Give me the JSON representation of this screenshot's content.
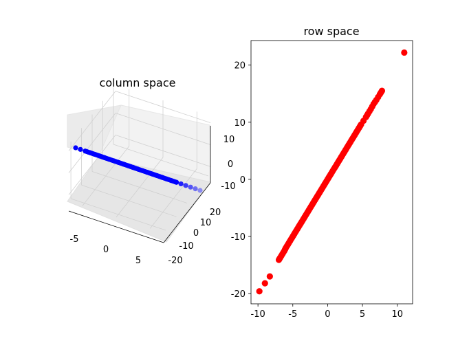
{
  "chart_data": [
    {
      "type": "scatter",
      "projection": "3d",
      "title": "column space",
      "xlabel": "",
      "ylabel": "",
      "zlabel": "",
      "xlim": [
        -7,
        7
      ],
      "ylim": [
        -22,
        22
      ],
      "zlim": [
        -13,
        13
      ],
      "x_ticks": [
        "-5",
        "0",
        "5"
      ],
      "y_ticks": [
        "-20",
        "-10",
        "0",
        "10",
        "20"
      ],
      "z_ticks": [
        "-10",
        "0",
        "10"
      ],
      "grid": true,
      "color": "#0000ff",
      "points": {
        "x": [
          -6.9,
          -6.0,
          -5.5,
          -5.0,
          -4.5,
          -4.0,
          -3.5,
          -3.0,
          -2.5,
          -2.0,
          -1.5,
          -1.0,
          -0.5,
          0.0,
          0.5,
          1.0,
          1.5,
          2.0,
          2.5,
          3.0,
          3.5,
          4.0,
          4.5,
          5.0,
          5.5,
          6.0,
          6.5
        ],
        "y": [
          -20.0,
          -17.5,
          -16.0,
          -14.5,
          -13.0,
          -11.5,
          -10.0,
          -8.5,
          -7.0,
          -5.5,
          -4.0,
          -2.5,
          -1.0,
          0.5,
          2.0,
          3.5,
          5.0,
          6.5,
          8.0,
          9.5,
          11.0,
          12.5,
          14.0,
          15.5,
          17.0,
          18.5,
          20.0
        ],
        "z": [
          6.0,
          4.0,
          3.5,
          3.0,
          2.5,
          2.0,
          1.5,
          1.0,
          0.5,
          0.0,
          -0.5,
          -1.0,
          -1.5,
          -2.0,
          -2.5,
          -3.0,
          -3.5,
          -4.0,
          -4.5,
          -5.0,
          -5.5,
          -6.0,
          -6.5,
          -7.0,
          -7.5,
          -8.0,
          -8.5
        ]
      }
    },
    {
      "type": "scatter",
      "title": "row space",
      "xlabel": "",
      "ylabel": "",
      "xlim": [
        -11,
        12.2
      ],
      "ylim": [
        -21.8,
        24.3
      ],
      "x_ticks": [
        -10,
        -5,
        0,
        5,
        10
      ],
      "y_ticks": [
        -20,
        -10,
        0,
        10,
        20
      ],
      "grid": false,
      "color": "#ff0000",
      "points": {
        "x": [
          -9.8,
          -9.0,
          -8.3,
          -7.0,
          -6.8,
          -6.5,
          -6.2,
          -6.0,
          -5.7,
          -5.4,
          -5.1,
          -4.8,
          -4.5,
          -4.2,
          -3.9,
          -3.6,
          -3.3,
          -3.0,
          -2.7,
          -2.4,
          -2.1,
          -1.8,
          -1.5,
          -1.2,
          -0.9,
          -0.6,
          -0.3,
          0.0,
          0.3,
          0.6,
          0.9,
          1.2,
          1.5,
          1.8,
          2.1,
          2.4,
          2.7,
          3.0,
          3.3,
          3.6,
          3.9,
          4.2,
          4.5,
          4.8,
          5.5,
          5.8,
          6.2,
          6.6,
          7.0,
          7.5,
          7.8,
          11.0
        ],
        "y": [
          -19.6,
          -18.2,
          -17.0,
          -14.1,
          -13.7,
          -13.1,
          -12.5,
          -12.0,
          -11.4,
          -10.8,
          -10.2,
          -9.6,
          -9.0,
          -8.4,
          -7.8,
          -7.2,
          -6.6,
          -6.0,
          -5.4,
          -4.8,
          -4.2,
          -3.6,
          -3.0,
          -2.4,
          -1.8,
          -1.2,
          -0.6,
          0.0,
          0.6,
          1.2,
          1.8,
          2.4,
          3.0,
          3.6,
          4.2,
          4.8,
          5.4,
          6.0,
          6.6,
          7.2,
          7.8,
          8.4,
          9.0,
          9.6,
          10.9,
          11.5,
          12.3,
          13.2,
          13.9,
          14.9,
          15.5,
          22.2
        ]
      }
    }
  ]
}
